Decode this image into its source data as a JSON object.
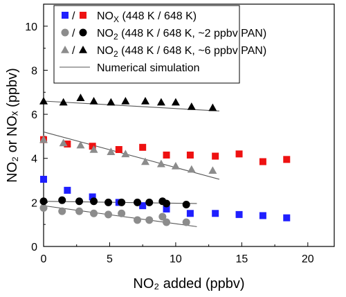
{
  "chart_data": {
    "type": "scatter",
    "xlabel": "NO₂ added (ppbv)",
    "ylabel": "NO₂ or NOₓ (ppbv)",
    "xlim": [
      0,
      22
    ],
    "ylim": [
      0,
      11
    ],
    "x_ticks": [
      0,
      5,
      10,
      15,
      20
    ],
    "y_ticks": [
      0,
      2,
      4,
      6,
      8,
      10
    ],
    "grid": false,
    "legend_position": "top-center",
    "legend": [
      {
        "prefix": "NO",
        "sub": "X",
        "suffix": " (448 K / 648 K)",
        "markers": [
          "square-blue",
          "square-red"
        ]
      },
      {
        "prefix": "NO",
        "sub": "2",
        "suffix": " (448 K / 648 K, ~2 ppbv PAN)",
        "markers": [
          "circle-gray",
          "circle-black"
        ]
      },
      {
        "prefix": "NO",
        "sub": "2",
        "suffix": " (448 K / 648 K, ~6 ppbv PAN)",
        "markers": [
          "triangle-gray",
          "triangle-black"
        ]
      },
      {
        "prefix": "Numerical simulation",
        "sub": "",
        "suffix": "",
        "markers": [
          "line"
        ]
      }
    ],
    "series": [
      {
        "marker": "square",
        "color": "#1f1fff",
        "x": [
          0,
          1.8,
          3.7,
          5.7,
          7.5,
          9.3,
          11.1,
          13,
          14.8,
          16.6,
          18.4
        ],
        "y": [
          3.05,
          2.55,
          2.25,
          2.0,
          1.85,
          1.7,
          1.5,
          1.5,
          1.45,
          1.4,
          1.3
        ]
      },
      {
        "marker": "square",
        "color": "#ee1111",
        "x": [
          0,
          1.8,
          3.7,
          5.7,
          7.5,
          9.3,
          11.1,
          13,
          14.8,
          16.6,
          18.4
        ],
        "y": [
          4.85,
          4.65,
          4.55,
          4.4,
          4.5,
          4.15,
          4.15,
          4.1,
          4.2,
          3.85,
          3.95
        ]
      },
      {
        "marker": "circle",
        "color": "#8c8c8c",
        "x": [
          0,
          1.4,
          2.7,
          3.8,
          4.9,
          5.9,
          7.1,
          8.0,
          9.0,
          9.3,
          10.8
        ],
        "y": [
          1.75,
          1.6,
          1.6,
          1.5,
          1.45,
          1.5,
          1.2,
          1.2,
          1.35,
          1.1,
          1.1
        ]
      },
      {
        "marker": "circle",
        "color": "#000000",
        "x": [
          0,
          1.4,
          2.7,
          3.8,
          4.9,
          5.9,
          7.1,
          8.0,
          9.0,
          9.3,
          10.8
        ],
        "y": [
          2.05,
          2.1,
          2.05,
          2.05,
          2.0,
          2.0,
          2.0,
          2.0,
          2.05,
          1.95,
          1.9
        ]
      },
      {
        "marker": "triangle",
        "color": "#8c8c8c",
        "x": [
          0,
          1.5,
          2.8,
          3.8,
          5.1,
          6.2,
          7.7,
          8.9,
          10.0,
          11.2,
          12.8
        ],
        "y": [
          4.85,
          4.7,
          4.6,
          4.4,
          4.3,
          4.2,
          3.85,
          3.75,
          3.65,
          3.5,
          3.45
        ]
      },
      {
        "marker": "triangle",
        "color": "#000000",
        "x": [
          0,
          1.5,
          2.8,
          3.8,
          5.1,
          6.2,
          7.7,
          8.9,
          10.0,
          11.2,
          12.8
        ],
        "y": [
          6.6,
          6.55,
          6.75,
          6.6,
          6.55,
          6.6,
          6.6,
          6.55,
          6.55,
          6.35,
          6.3
        ]
      }
    ],
    "simulation_lines": [
      {
        "x": [
          0,
          13.3
        ],
        "y": [
          6.6,
          6.15
        ]
      },
      {
        "x": [
          0,
          13.3
        ],
        "y": [
          5.2,
          3.05
        ]
      },
      {
        "x": [
          0,
          11.6
        ],
        "y": [
          2.05,
          1.95
        ]
      },
      {
        "x": [
          0,
          11.6
        ],
        "y": [
          1.85,
          0.9
        ]
      }
    ]
  }
}
